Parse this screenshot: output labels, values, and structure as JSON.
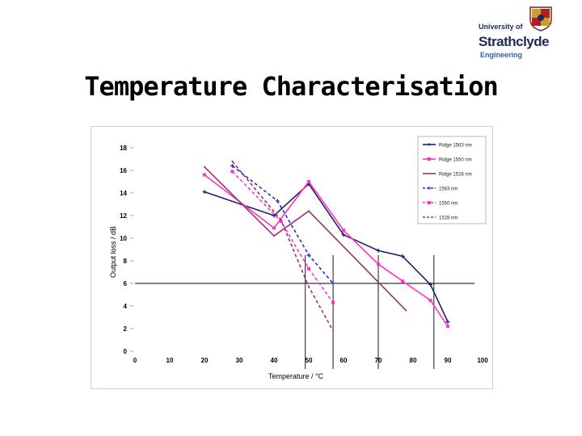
{
  "header": {
    "logo_line1": "University of",
    "logo_line2": "Strathclyde",
    "logo_line3": "Engineering",
    "title": "Temperature Characterisation"
  },
  "chart_data": {
    "type": "line",
    "title": "",
    "xlabel": "Temperature / °C",
    "ylabel": "Output loss / dB",
    "xlim": [
      0,
      100
    ],
    "ylim": [
      0,
      18
    ],
    "xticks": [
      "0",
      "10",
      "20",
      "30",
      "40",
      "50",
      "60",
      "70",
      "80",
      "90",
      "100"
    ],
    "yticks": [
      "0",
      "2",
      "4",
      "6",
      "8",
      "10",
      "12",
      "14",
      "16",
      "18"
    ],
    "grid": false,
    "legend_position": "top-right",
    "series": [
      {
        "name": "Ridge 1563 nm",
        "color": "#1c1f6b",
        "dash": "solid",
        "marker": "plus",
        "x": [
          20,
          40,
          50,
          60,
          70,
          77,
          85,
          90
        ],
        "y": [
          14.1,
          12.0,
          14.8,
          10.3,
          8.9,
          8.4,
          5.9,
          2.6
        ]
      },
      {
        "name": "Ridge 1550 nm",
        "color": "#ff33cc",
        "dash": "solid",
        "marker": "square",
        "x": [
          20,
          40,
          50,
          60,
          70,
          77,
          85,
          90
        ],
        "y": [
          15.6,
          10.9,
          15.0,
          10.7,
          7.7,
          6.2,
          4.5,
          2.2
        ]
      },
      {
        "name": "Ridge 1528 nm",
        "color": "#993366",
        "dash": "solid",
        "marker": "none",
        "x": [
          20,
          40,
          50,
          78
        ],
        "y": [
          16.3,
          10.2,
          12.4,
          3.6
        ]
      },
      {
        "name": "1563 nm",
        "color": "#1a35c0",
        "dash": "dashed",
        "marker": "plus",
        "x": [
          28,
          41,
          50,
          57
        ],
        "y": [
          16.4,
          13.3,
          8.5,
          6.0
        ]
      },
      {
        "name": "1550 nm",
        "color": "#ff33cc",
        "dash": "dashed",
        "marker": "square",
        "x": [
          28,
          42,
          50,
          57
        ],
        "y": [
          15.9,
          11.5,
          7.3,
          4.3
        ]
      },
      {
        "name": "1528 nm",
        "color": "#993366",
        "dash": "dashed",
        "marker": "none",
        "x": [
          28,
          42,
          50,
          57
        ],
        "y": [
          16.8,
          11.6,
          5.7,
          1.8
        ]
      }
    ],
    "annotations": {
      "hline_y": 6,
      "vlines_x": [
        49,
        57,
        70,
        86
      ]
    }
  }
}
